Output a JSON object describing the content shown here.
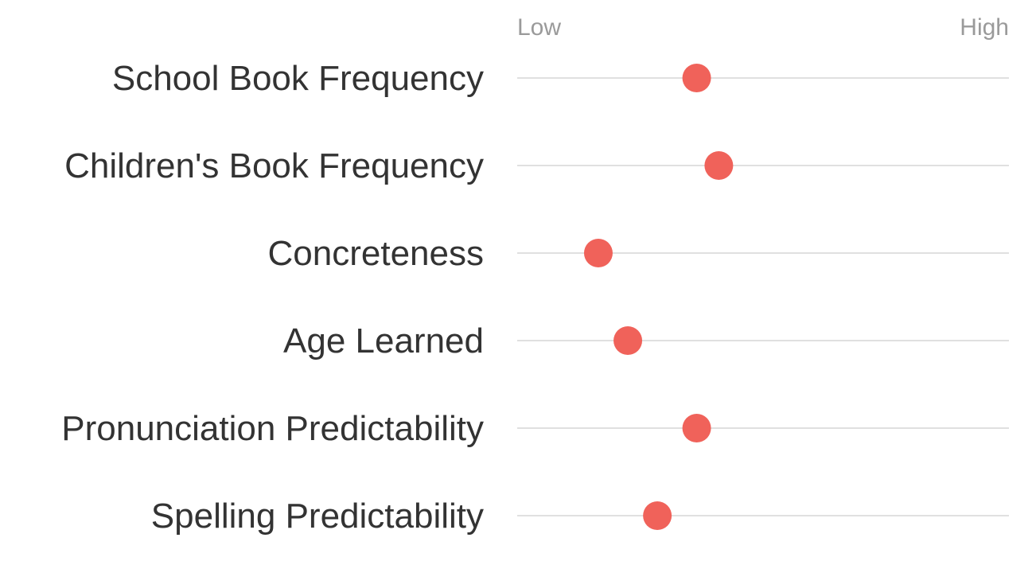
{
  "chart_data": {
    "type": "scatter",
    "orientation": "horizontal-dot-scale",
    "scale_min_label": "Low",
    "scale_max_label": "High",
    "xlim": [
      0,
      100
    ],
    "dot_color": "#f0625a",
    "rows": [
      {
        "label": "School Book Frequency",
        "value": 36.5
      },
      {
        "label": "Children's Book Frequency",
        "value": 41
      },
      {
        "label": "Concreteness",
        "value": 16.5
      },
      {
        "label": "Age Learned",
        "value": 22.5
      },
      {
        "label": "Pronunciation Predictability",
        "value": 36.5
      },
      {
        "label": "Spelling Predictability",
        "value": 28.5
      }
    ],
    "grid": false,
    "legend": "none"
  }
}
